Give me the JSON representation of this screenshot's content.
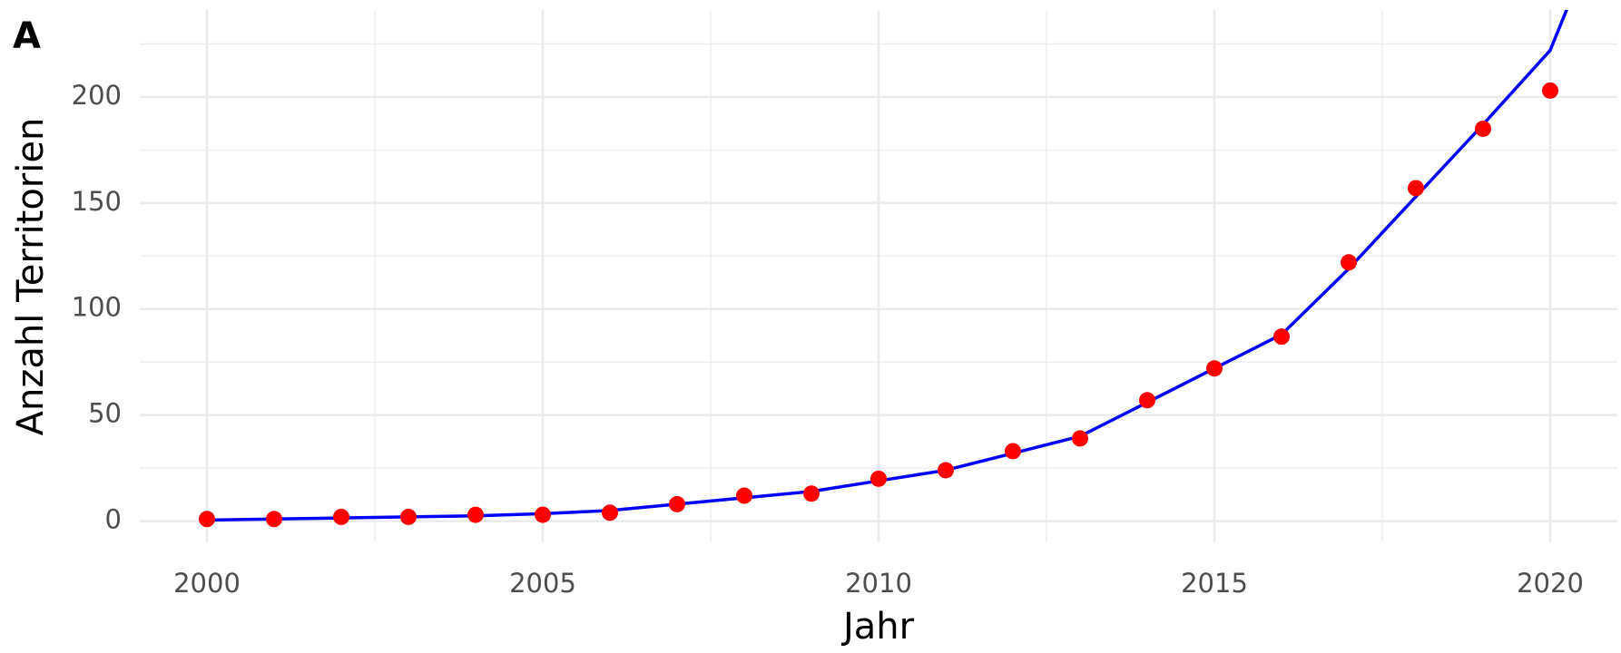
{
  "chart_data": {
    "type": "scatter_line",
    "panel_label": "A",
    "x_label": "Jahr",
    "y_label": "Anzahl Territorien",
    "xlim": [
      1999,
      2021
    ],
    "ylim": [
      -10,
      241
    ],
    "xticks": [
      2000,
      2005,
      2010,
      2015,
      2020
    ],
    "yticks": [
      0,
      50,
      100,
      150,
      200
    ],
    "xminor": [
      2002.5,
      2007.5,
      2012.5,
      2017.5
    ],
    "yminor": [
      25,
      75,
      125,
      175,
      225
    ],
    "grid": true,
    "series": [
      {
        "kind": "line",
        "color": "#0000ff",
        "x": [
          2000,
          2001,
          2002,
          2003,
          2004,
          2005,
          2006,
          2007,
          2008,
          2009,
          2010,
          2011,
          2012,
          2013,
          2014,
          2015,
          2016,
          2017,
          2018,
          2019,
          2020,
          2021
        ],
        "values": [
          0.5,
          1,
          1.5,
          2,
          2.5,
          3.5,
          5,
          8,
          11,
          14,
          19,
          24,
          32,
          40,
          56,
          72,
          88,
          119,
          153,
          187,
          222,
          300
        ]
      },
      {
        "kind": "points",
        "color": "#ff0000",
        "x": [
          2000,
          2001,
          2002,
          2003,
          2004,
          2005,
          2006,
          2007,
          2008,
          2009,
          2010,
          2011,
          2012,
          2013,
          2014,
          2015,
          2016,
          2017,
          2018,
          2019,
          2020
        ],
        "values": [
          1,
          1,
          2,
          2,
          3,
          3,
          4,
          8,
          12,
          13,
          20,
          24,
          33,
          39,
          57,
          72,
          87,
          122,
          157,
          185,
          203
        ]
      }
    ]
  }
}
